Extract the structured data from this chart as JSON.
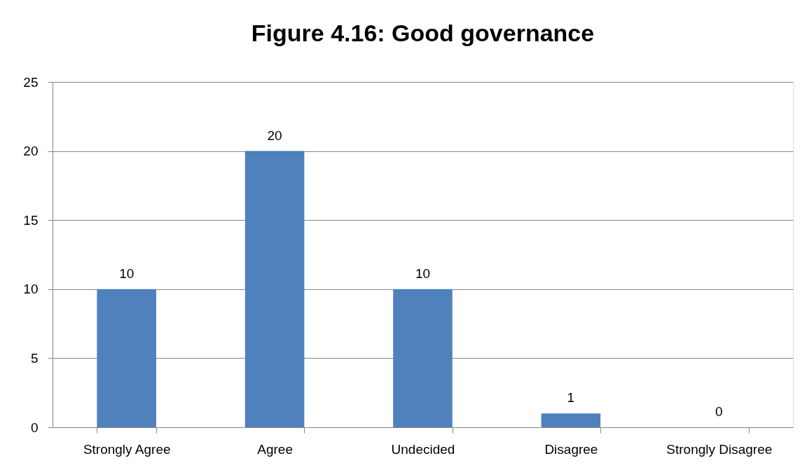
{
  "chart_data": {
    "type": "bar",
    "title": "Figure 4.16: Good governance",
    "categories": [
      "Strongly Agree",
      "Agree",
      "Undecided",
      "Disagree",
      "Strongly Disagree"
    ],
    "values": [
      10,
      20,
      10,
      1,
      0
    ],
    "color": "#4f81bd",
    "ylim": [
      0,
      25
    ],
    "yticks": [
      0,
      5,
      10,
      15,
      20,
      25
    ],
    "grid": "y",
    "data_labels": true
  }
}
